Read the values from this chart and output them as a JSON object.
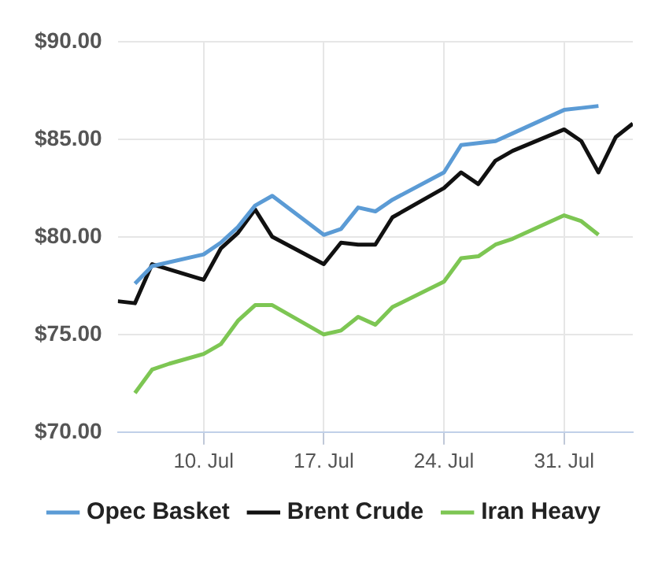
{
  "chart_data": {
    "type": "line",
    "xlim": [
      "--07-05",
      "--08-04"
    ],
    "xticks": [
      {
        "value": "--07-10",
        "label": "10. Jul"
      },
      {
        "value": "--07-17",
        "label": "17. Jul"
      },
      {
        "value": "--07-24",
        "label": "24. Jul"
      },
      {
        "value": "--07-31",
        "label": "31. Jul"
      }
    ],
    "ylim": [
      70,
      90
    ],
    "yticks": [
      {
        "value": 70,
        "label": "$70.00"
      },
      {
        "value": 75,
        "label": "$75.00"
      },
      {
        "value": 80,
        "label": "$80.00"
      },
      {
        "value": 85,
        "label": "$85.00"
      },
      {
        "value": 90,
        "label": "$90.00"
      }
    ],
    "series": [
      {
        "name": "Opec Basket",
        "color": "#5b9bd5",
        "x": [
          "--07-06",
          "--07-07",
          "--07-10",
          "--07-11",
          "--07-12",
          "--07-13",
          "--07-14",
          "--07-17",
          "--07-18",
          "--07-19",
          "--07-20",
          "--07-21",
          "--07-24",
          "--07-25",
          "--07-26",
          "--07-27",
          "--07-28",
          "--07-31",
          "--08-01",
          "--08-02"
        ],
        "values": [
          77.6,
          78.5,
          79.1,
          79.7,
          80.5,
          81.6,
          82.1,
          80.1,
          80.4,
          81.5,
          81.3,
          81.9,
          83.3,
          84.7,
          84.8,
          84.9,
          85.3,
          86.5,
          86.6,
          86.7
        ]
      },
      {
        "name": "Brent Crude",
        "color": "#111111",
        "x": [
          "--07-05",
          "--07-06",
          "--07-07",
          "--07-10",
          "--07-11",
          "--07-12",
          "--07-13",
          "--07-14",
          "--07-17",
          "--07-18",
          "--07-19",
          "--07-20",
          "--07-21",
          "--07-24",
          "--07-25",
          "--07-26",
          "--07-27",
          "--07-28",
          "--07-31",
          "--08-01",
          "--08-02",
          "--08-03",
          "--08-04"
        ],
        "values": [
          76.7,
          76.6,
          78.6,
          77.8,
          79.4,
          80.2,
          81.4,
          80.0,
          78.6,
          79.7,
          79.6,
          79.6,
          81.0,
          82.5,
          83.3,
          82.7,
          83.9,
          84.4,
          85.5,
          84.9,
          83.3,
          85.1,
          85.8
        ]
      },
      {
        "name": "Iran Heavy",
        "color": "#7dc653",
        "x": [
          "--07-06",
          "--07-07",
          "--07-08",
          "--07-10",
          "--07-11",
          "--07-12",
          "--07-13",
          "--07-14",
          "--07-17",
          "--07-18",
          "--07-19",
          "--07-20",
          "--07-21",
          "--07-24",
          "--07-25",
          "--07-26",
          "--07-27",
          "--07-28",
          "--07-31",
          "--08-01",
          "--08-02"
        ],
        "values": [
          72.0,
          73.2,
          73.5,
          74.0,
          74.5,
          75.7,
          76.5,
          76.5,
          75.0,
          75.2,
          75.9,
          75.5,
          76.4,
          77.7,
          78.9,
          79.0,
          79.6,
          79.9,
          81.1,
          80.8,
          80.1
        ]
      }
    ],
    "grid": true,
    "legend": "bottom",
    "marker": "none",
    "line_style": "solid"
  }
}
